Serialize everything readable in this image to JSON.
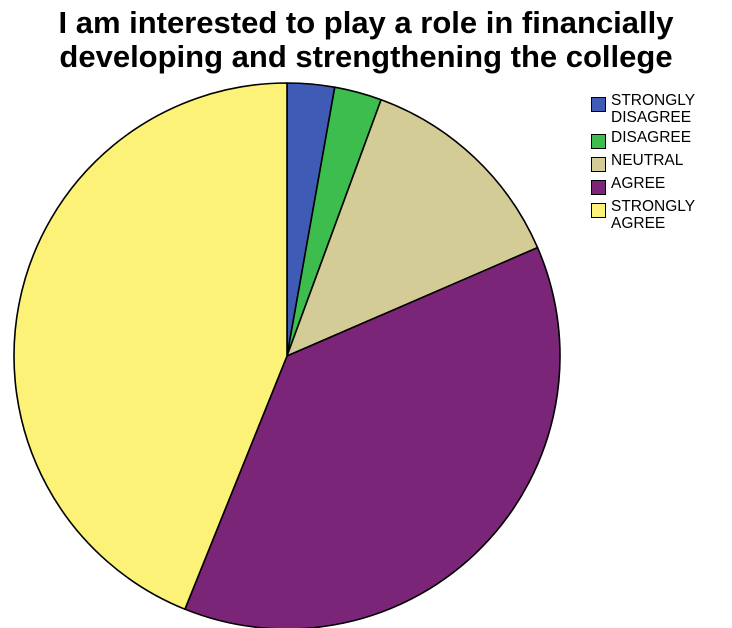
{
  "chart_data": {
    "type": "pie",
    "title_lines": [
      "I am interested to play a role in financially",
      "developing and strengthening the college"
    ],
    "start_angle_deg": 0,
    "direction": "clockwise",
    "slices": [
      {
        "label": "STRONGLY\nDISAGREE",
        "value": 2.8,
        "color": "#3f5bb5"
      },
      {
        "label": "DISAGREE",
        "value": 2.8,
        "color": "#3dbd4d"
      },
      {
        "label": "NEUTRAL",
        "value": 12.9,
        "color": "#d4cc96"
      },
      {
        "label": "AGREE",
        "value": 37.6,
        "color": "#7b2579"
      },
      {
        "label": "STRONGLY\nAGREE",
        "value": 43.9,
        "color": "#fbf277"
      }
    ],
    "legend_position": "top-right",
    "outline_color": "#000000"
  }
}
